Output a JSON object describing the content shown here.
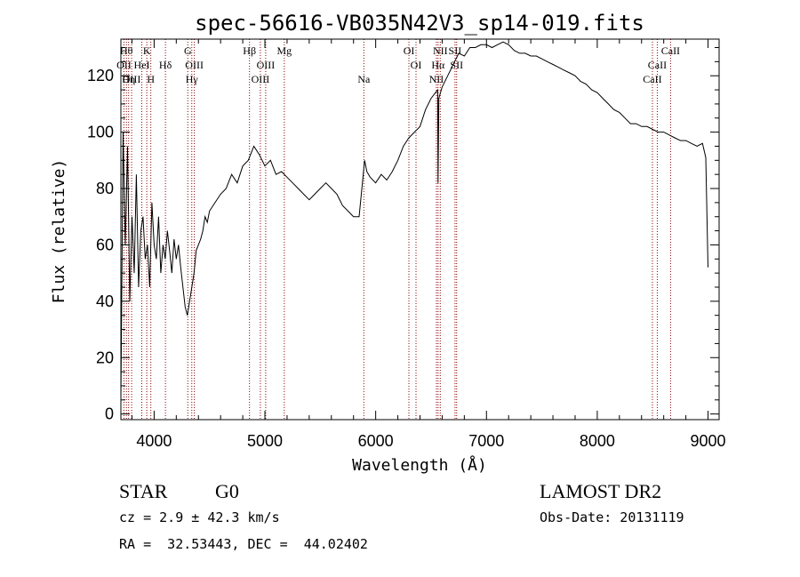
{
  "chart_data": {
    "type": "line",
    "title": "spec-56616-VB035N42V3_sp14-019.fits",
    "xlabel": "Wavelength (Å)",
    "ylabel": "Flux (relative)",
    "xlim": [
      3700,
      9100
    ],
    "ylim": [
      -2,
      133
    ],
    "xticks": [
      4000,
      5000,
      6000,
      7000,
      8000,
      9000
    ],
    "yticks": [
      0,
      20,
      40,
      60,
      80,
      100,
      120
    ],
    "grid": false,
    "line_color": "#000000",
    "marker_color": "#8b0000",
    "series": [
      {
        "x": [
          3700,
          3720,
          3740,
          3760,
          3780,
          3800,
          3820,
          3840,
          3860,
          3880,
          3900,
          3920,
          3940,
          3960,
          3980,
          4000,
          4020,
          4040,
          4060,
          4080,
          4100,
          4120,
          4140,
          4160,
          4180,
          4200,
          4220,
          4240,
          4260,
          4280,
          4300,
          4320,
          4340,
          4360,
          4380,
          4400,
          4420,
          4440,
          4460,
          4480,
          4500,
          4550,
          4600,
          4650,
          4700,
          4750,
          4800,
          4850,
          4900,
          4950,
          5000,
          5050,
          5100,
          5150,
          5200,
          5250,
          5300,
          5350,
          5400,
          5450,
          5500,
          5550,
          5600,
          5650,
          5700,
          5750,
          5800,
          5850,
          5900,
          5920,
          5950,
          6000,
          6050,
          6100,
          6150,
          6200,
          6250,
          6300,
          6350,
          6400,
          6450,
          6500,
          6540,
          6560,
          6563,
          6570,
          6600,
          6650,
          6700,
          6750,
          6800,
          6850,
          6900,
          6950,
          7000,
          7050,
          7100,
          7150,
          7200,
          7250,
          7300,
          7350,
          7400,
          7450,
          7500,
          7550,
          7600,
          7650,
          7700,
          7750,
          7800,
          7850,
          7900,
          7950,
          8000,
          8050,
          8100,
          8150,
          8200,
          8250,
          8300,
          8350,
          8400,
          8450,
          8500,
          8550,
          8600,
          8650,
          8700,
          8750,
          8800,
          8850,
          8900,
          8950,
          8980,
          9000
        ],
        "y": [
          5,
          100,
          60,
          95,
          40,
          70,
          50,
          85,
          45,
          65,
          70,
          55,
          60,
          45,
          75,
          60,
          55,
          70,
          50,
          60,
          55,
          65,
          58,
          50,
          62,
          55,
          60,
          52,
          45,
          38,
          35,
          40,
          45,
          50,
          58,
          60,
          62,
          65,
          70,
          68,
          72,
          75,
          78,
          80,
          85,
          82,
          88,
          90,
          95,
          92,
          88,
          90,
          85,
          86,
          84,
          82,
          80,
          78,
          76,
          78,
          80,
          82,
          80,
          78,
          74,
          72,
          70,
          70,
          90,
          86,
          84,
          82,
          85,
          83,
          86,
          90,
          95,
          98,
          100,
          102,
          108,
          112,
          114,
          115,
          82,
          112,
          116,
          120,
          124,
          128,
          127,
          130,
          130,
          131,
          131,
          130,
          131,
          132,
          131,
          129,
          128,
          128,
          127,
          127,
          126,
          125,
          124,
          123,
          122,
          121,
          120,
          118,
          117,
          115,
          114,
          112,
          110,
          108,
          107,
          105,
          103,
          103,
          102,
          102,
          101,
          100,
          100,
          99,
          98,
          97,
          97,
          96,
          95,
          96,
          91,
          52
        ]
      }
    ],
    "line_markers": [
      {
        "x": 3728,
        "label": "OII",
        "row": 1
      },
      {
        "x": 3750,
        "label": "Hθ",
        "row": 0
      },
      {
        "x": 3770,
        "label": "Hη",
        "row": 2
      },
      {
        "x": 3797,
        "label": "OIII",
        "row": 2
      },
      {
        "x": 3889,
        "label": "HeI",
        "row": 1
      },
      {
        "x": 3934,
        "label": "K",
        "row": 0
      },
      {
        "x": 3970,
        "label": "H",
        "row": 2
      },
      {
        "x": 4102,
        "label": "Hδ",
        "row": 1
      },
      {
        "x": 4304,
        "label": "G",
        "row": 0
      },
      {
        "x": 4340,
        "label": "Hγ",
        "row": 2
      },
      {
        "x": 4363,
        "label": "OIII",
        "row": 1
      },
      {
        "x": 4861,
        "label": "Hβ",
        "row": 0
      },
      {
        "x": 4959,
        "label": "OIII",
        "row": 2
      },
      {
        "x": 5007,
        "label": "OIII",
        "row": 1
      },
      {
        "x": 5175,
        "label": "Mg",
        "row": 0
      },
      {
        "x": 5893,
        "label": "Na",
        "row": 2
      },
      {
        "x": 6300,
        "label": "OI",
        "row": 0
      },
      {
        "x": 6364,
        "label": "OI",
        "row": 1
      },
      {
        "x": 6548,
        "label": "NII",
        "row": 2
      },
      {
        "x": 6563,
        "label": "Hα",
        "row": 1
      },
      {
        "x": 6583,
        "label": "NII",
        "row": 0
      },
      {
        "x": 6716,
        "label": "SII",
        "row": 0
      },
      {
        "x": 6731,
        "label": "SII",
        "row": 1
      },
      {
        "x": 8498,
        "label": "CaII",
        "row": 2
      },
      {
        "x": 8542,
        "label": "CaII",
        "row": 1
      },
      {
        "x": 8662,
        "label": "CaII",
        "row": 0
      }
    ]
  },
  "info": {
    "classification": "STAR",
    "subclass": "G0",
    "redshift": "cz = 2.9 ± 42.3 km/s",
    "coords": "RA =  32.53443, DEC =  44.02402",
    "survey": "LAMOST DR2",
    "obs_date": "Obs-Date: 20131119"
  }
}
